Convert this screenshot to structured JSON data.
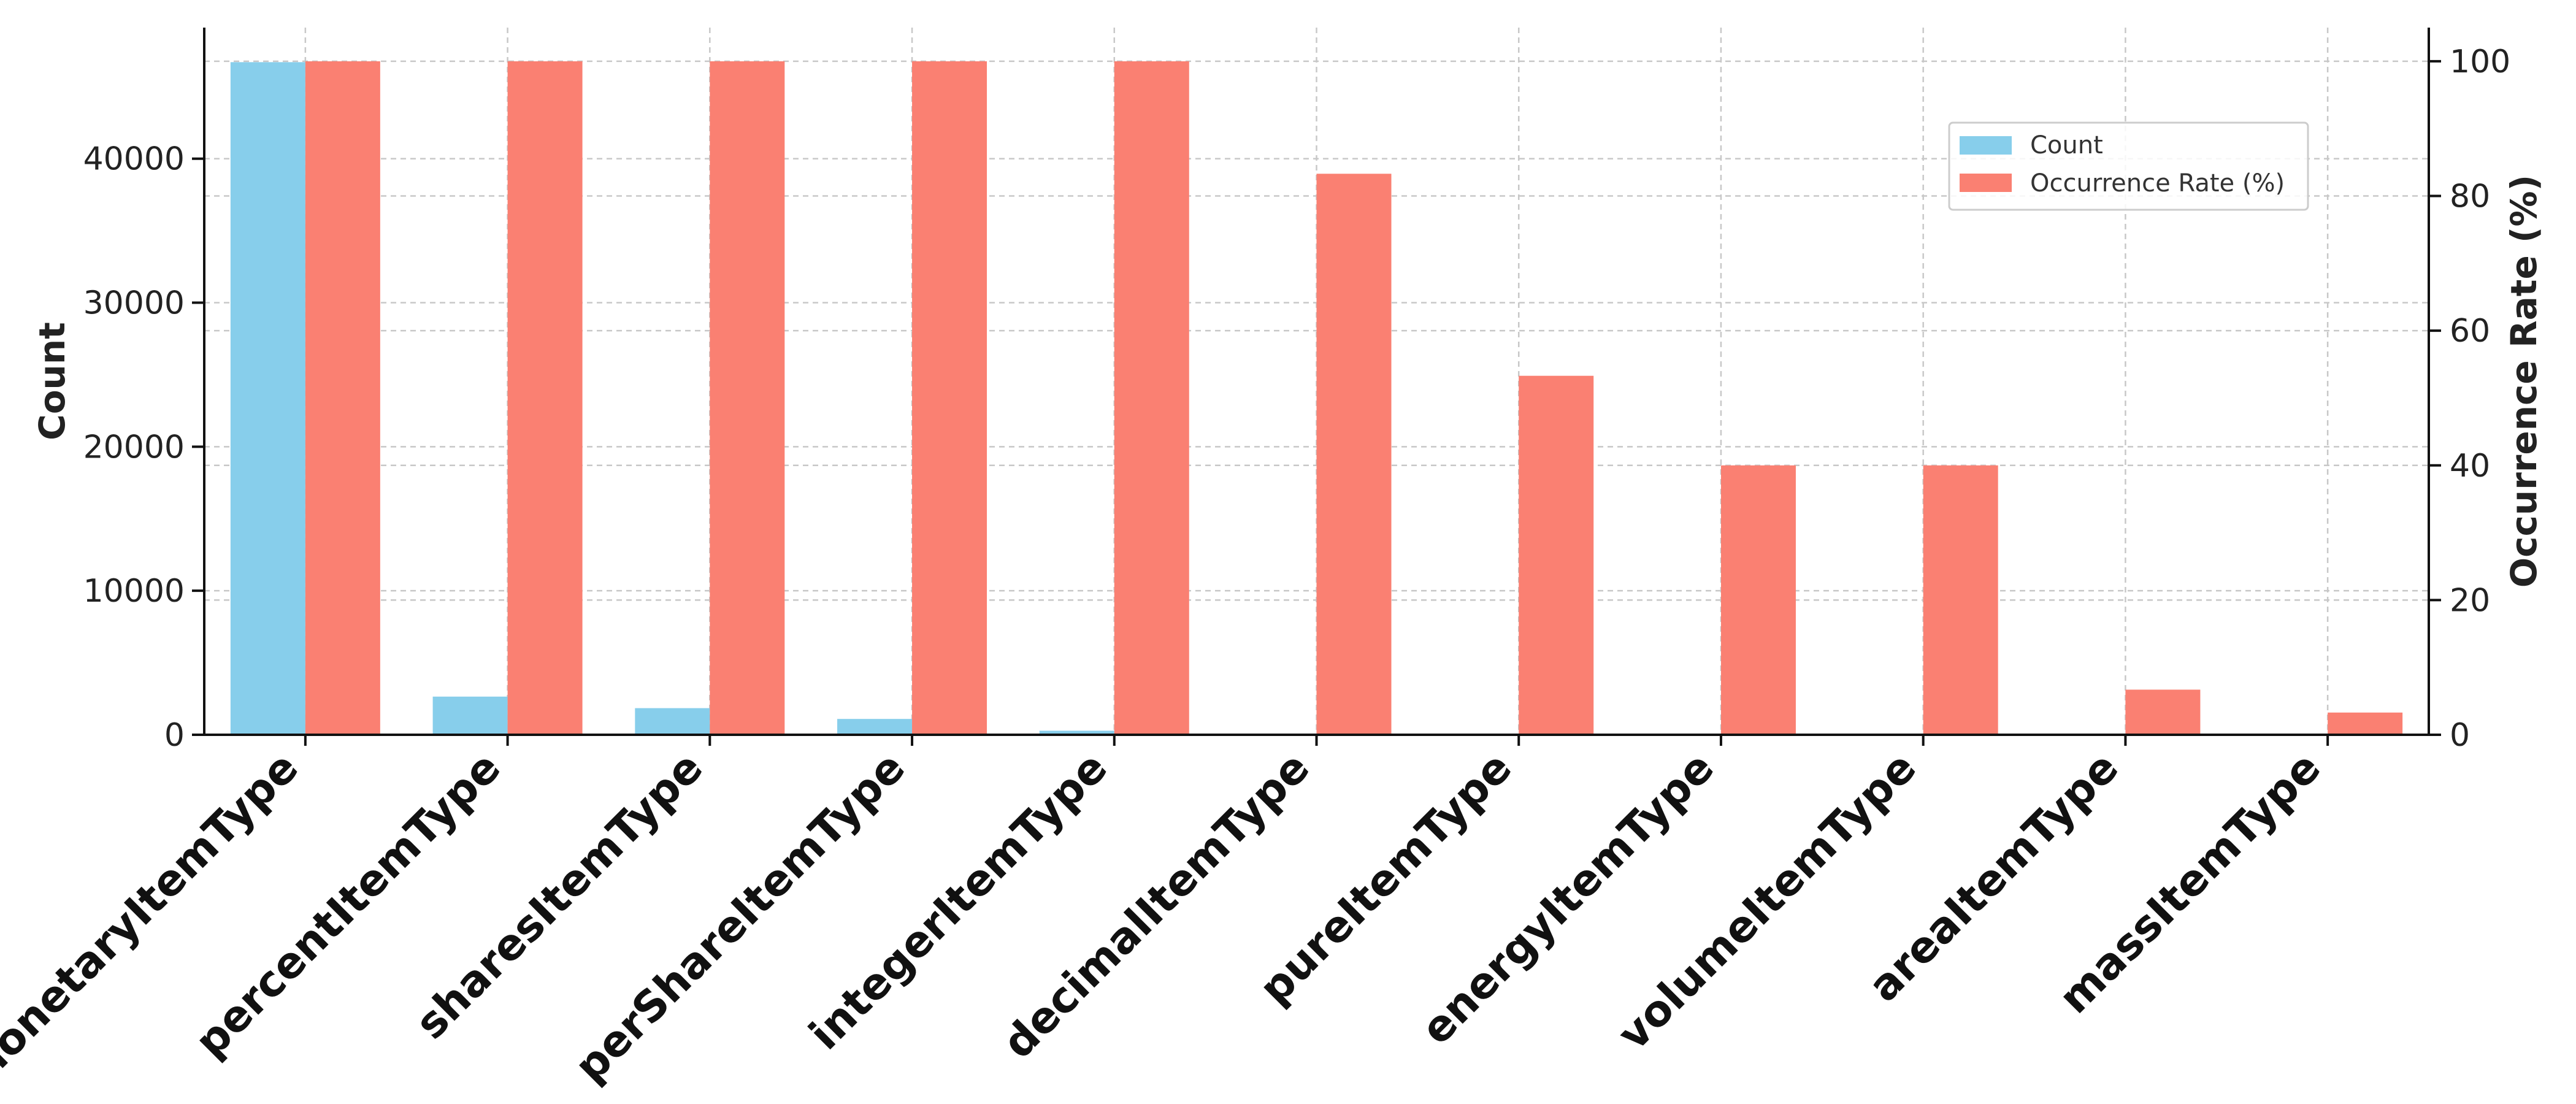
{
  "chart_data": {
    "type": "bar",
    "title": "",
    "xlabel": "",
    "ylabel": "Count",
    "y2label": "Occurrence Rate (%)",
    "categories": [
      "monetaryItemType",
      "percentItemType",
      "sharesItemType",
      "perShareItemType",
      "integerItemType",
      "decimalItemType",
      "pureItemType",
      "energyItemType",
      "volumeItemType",
      "areaItemType",
      "massItemType"
    ],
    "series": [
      {
        "name": "Count",
        "axis": "left",
        "color": "#87ceeb",
        "values": [
          46700,
          2650,
          1850,
          1100,
          280,
          0,
          0,
          0,
          0,
          0,
          0
        ]
      },
      {
        "name": "Occurrence Rate (%)",
        "axis": "right",
        "color": "#fa8072",
        "values": [
          100,
          100,
          100,
          100,
          100,
          83.3,
          53.3,
          40,
          40,
          6.7,
          3.3
        ]
      }
    ],
    "ylim": [
      0,
      49100
    ],
    "y2lim": [
      0,
      105
    ],
    "yticks": [
      "0",
      "10000",
      "20000",
      "30000",
      "40000"
    ],
    "y2ticks": [
      "0",
      "20",
      "40",
      "60",
      "80",
      "100"
    ],
    "grid": true,
    "legend_position": "upper right"
  }
}
